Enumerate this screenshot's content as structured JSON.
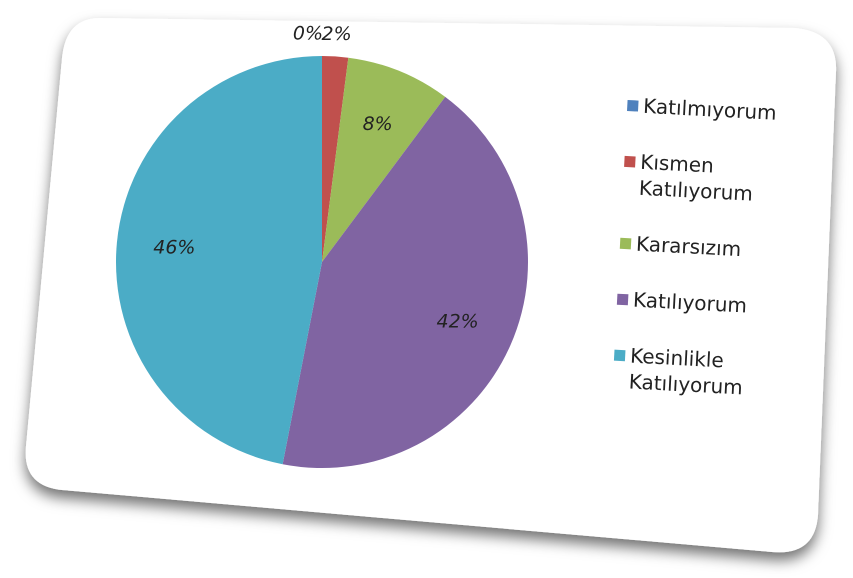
{
  "chart_data": {
    "type": "pie",
    "categories": [
      "Katılmıyorum",
      "Kısmen Katılıyorum",
      "Kararsızım",
      "Katılıyorum",
      "Kesinlikle Katılıyorum"
    ],
    "values": [
      0,
      2,
      8,
      42,
      46
    ],
    "value_labels": [
      "0%",
      "2%",
      "8%",
      "42%",
      "46%"
    ],
    "colors": [
      "#4f81bd",
      "#c0504d",
      "#9bbb59",
      "#8064a2",
      "#4bacc6"
    ],
    "legend": "right"
  }
}
